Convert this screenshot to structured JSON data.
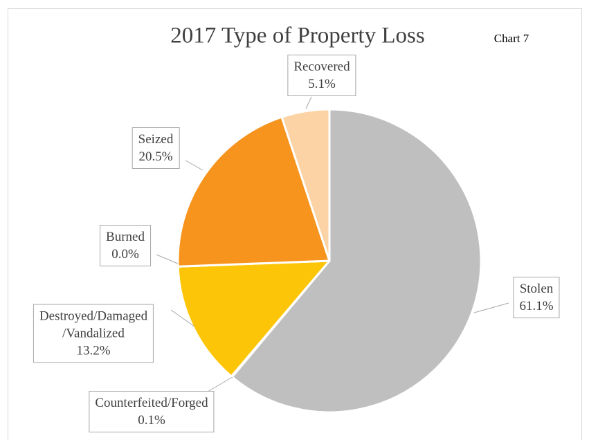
{
  "chart_data": {
    "type": "pie",
    "title": "2017 Type of Property Loss",
    "annotation": "Chart 7",
    "categories": [
      "Stolen",
      "Counterfeited/Forged",
      "Destroyed/Damaged\n/Vandalized",
      "Burned",
      "Seized",
      "Recovered"
    ],
    "values": [
      61.1,
      0.1,
      13.2,
      0.0,
      20.5,
      5.1
    ],
    "value_labels": [
      "61.1%",
      "0.1%",
      "13.2%",
      "0.0%",
      "20.5%",
      "5.1%"
    ],
    "colors": [
      "#bfbfbf",
      "#7f7f7f",
      "#fdc508",
      "#7f6000",
      "#f7941d",
      "#fcd3a5"
    ]
  }
}
